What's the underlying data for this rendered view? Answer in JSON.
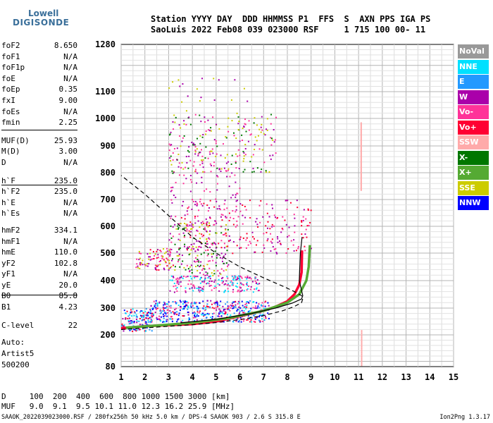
{
  "logo": {
    "line1": "Lowell",
    "line2": "DIGISONDE"
  },
  "header": {
    "line1": "Station YYYY DAY  DDD HHMMSS P1  FFS  S  AXN PPS IGA PS",
    "line2": "SaoLuis 2022 Feb08 039 023000 RSF     1 715 100 00- 11"
  },
  "params": [
    {
      "k": "foF2",
      "v": "8.650"
    },
    {
      "k": "foF1",
      "v": "N/A"
    },
    {
      "k": "foF1p",
      "v": "N/A"
    },
    {
      "k": "foE",
      "v": "N/A"
    },
    {
      "k": "foEp",
      "v": "0.35"
    },
    {
      "k": "fxI",
      "v": "9.00"
    },
    {
      "k": "foEs",
      "v": "N/A"
    },
    {
      "k": "fmin",
      "v": "2.25"
    },
    {
      "k": "MUF(D)",
      "v": "25.93"
    },
    {
      "k": "M(D)",
      "v": "3.00"
    },
    {
      "k": "D",
      "v": "N/A"
    },
    {
      "k": "h`F",
      "v": "235.0"
    },
    {
      "k": "h`F2",
      "v": "235.0"
    },
    {
      "k": "h`E",
      "v": "N/A"
    },
    {
      "k": "h`Es",
      "v": "N/A"
    },
    {
      "k": "hmF2",
      "v": "334.1"
    },
    {
      "k": "hmF1",
      "v": "N/A"
    },
    {
      "k": "hmE",
      "v": "110.0"
    },
    {
      "k": "yF2",
      "v": "102.8"
    },
    {
      "k": "yF1",
      "v": "N/A"
    },
    {
      "k": "yE",
      "v": "20.0"
    },
    {
      "k": "B0",
      "v": "85.8"
    },
    {
      "k": "B1",
      "v": "4.23"
    },
    {
      "k": "C-level",
      "v": "22"
    }
  ],
  "auto": [
    "Auto:",
    "Artist5",
    "500200"
  ],
  "legend": [
    {
      "label": "NoVal",
      "color": "#999999"
    },
    {
      "label": "NNE",
      "color": "#00e0ff"
    },
    {
      "label": "E",
      "color": "#2299ff"
    },
    {
      "label": "W",
      "color": "#aa00aa"
    },
    {
      "label": "Vo-",
      "color": "#ff3399"
    },
    {
      "label": "Vo+",
      "color": "#ff0033"
    },
    {
      "label": "SSW",
      "color": "#ffaaaa"
    },
    {
      "label": "X-",
      "color": "#007700"
    },
    {
      "label": "X+",
      "color": "#55aa33"
    },
    {
      "label": "SSE",
      "color": "#cccc00"
    },
    {
      "label": "NNW",
      "color": "#0000ff"
    }
  ],
  "muf_table": {
    "row1": "D     100  200  400  600  800 1000 1500 3000 [km]",
    "row2": "MUF   9.0  9.1  9.5 10.1 11.0 12.3 16.2 25.9 [MHz]"
  },
  "footer": {
    "left": "SAAOK_2022039023000.RSF / 280fx256h 50 kHz 5.0 km / DPS-4 SAAOK 903 / 2.6 S 315.8 E",
    "right": "Ion2Png 1.3.17"
  },
  "chart_data": {
    "type": "scatter",
    "x_ticks": [
      "1",
      "2",
      "3",
      "4",
      "5",
      "6",
      "7",
      "8",
      "9",
      "10",
      "11",
      "12",
      "13",
      "14",
      "15"
    ],
    "y_ticks": [
      "80",
      "200",
      "300",
      "400",
      "500",
      "600",
      "700",
      "800",
      "900",
      "1000",
      "1100",
      "1280"
    ],
    "x_range": [
      1,
      15
    ],
    "y_range": [
      80,
      1280
    ],
    "grid": true,
    "series": [
      {
        "type": "trace",
        "color": "#ff0033",
        "points": [
          [
            1.0,
            225
          ],
          [
            2,
            232
          ],
          [
            3,
            236
          ],
          [
            4,
            240
          ],
          [
            5,
            250
          ],
          [
            6,
            270
          ],
          [
            7,
            290
          ],
          [
            7.5,
            305
          ],
          [
            8.0,
            325
          ],
          [
            8.3,
            350
          ],
          [
            8.5,
            385
          ],
          [
            8.6,
            430
          ],
          [
            8.62,
            510
          ]
        ]
      },
      {
        "type": "trace",
        "color": "#55aa33",
        "points": [
          [
            1.2,
            227
          ],
          [
            2.5,
            235
          ],
          [
            4,
            245
          ],
          [
            5.5,
            262
          ],
          [
            7,
            290
          ],
          [
            8,
            320
          ],
          [
            8.5,
            350
          ],
          [
            8.8,
            400
          ],
          [
            8.9,
            450
          ],
          [
            8.95,
            530
          ]
        ]
      },
      {
        "type": "profile",
        "color": "#000000",
        "points": [
          [
            1,
            220
          ],
          [
            2,
            226
          ],
          [
            3,
            232
          ],
          [
            4,
            238
          ],
          [
            5,
            246
          ],
          [
            6,
            257
          ],
          [
            7,
            272
          ],
          [
            7.8,
            290
          ],
          [
            8.3,
            306
          ],
          [
            8.6,
            320
          ],
          [
            8.65,
            334
          ],
          [
            8.6,
            345
          ],
          [
            8.3,
            360
          ],
          [
            7.8,
            380
          ],
          [
            7,
            410
          ],
          [
            6,
            450
          ],
          [
            5,
            500
          ],
          [
            4,
            560
          ],
          [
            3,
            640
          ],
          [
            2,
            720
          ],
          [
            1,
            790
          ]
        ]
      },
      {
        "type": "model",
        "color": "#000000",
        "points": [
          [
            3.5,
            245
          ],
          [
            5,
            258
          ],
          [
            6.5,
            280
          ],
          [
            7.5,
            300
          ],
          [
            8.2,
            318
          ],
          [
            8.6,
            333
          ],
          [
            8.65,
            345
          ],
          [
            8.5,
            400
          ],
          [
            8.55,
            500
          ],
          [
            8.62,
            560
          ]
        ]
      }
    ]
  }
}
